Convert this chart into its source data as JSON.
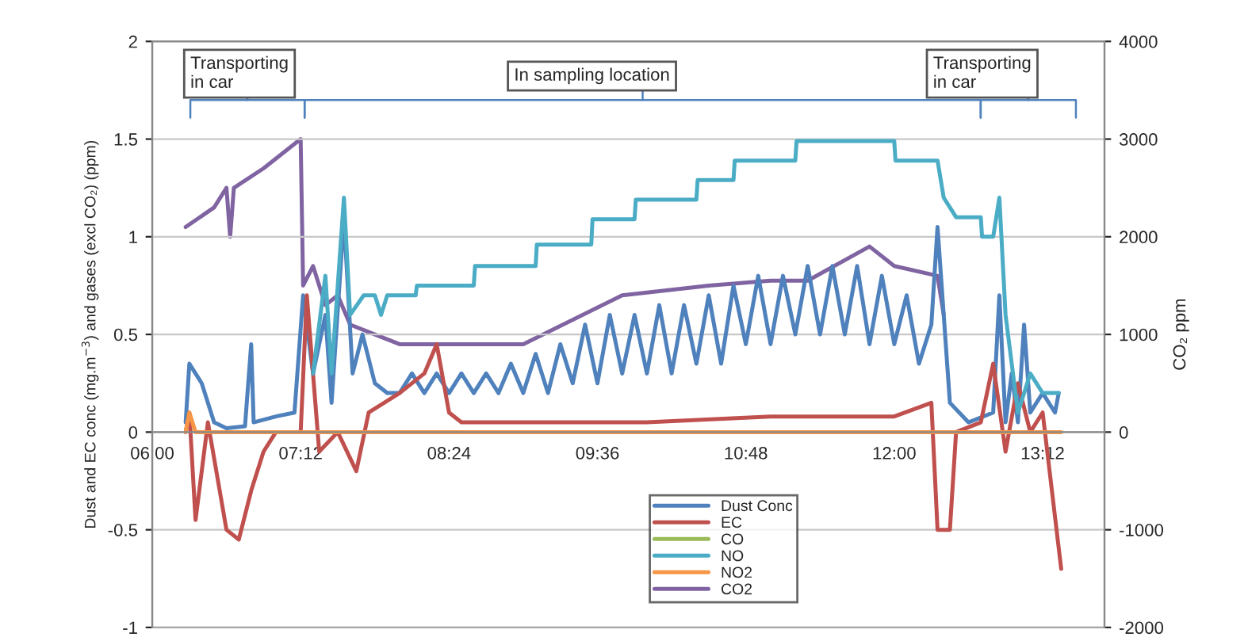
{
  "chart_data": {
    "type": "line",
    "xlabel": null,
    "ylabel": "Dust and EC conc (mg.m$^{−3}$) and gases (excl CO₂) (ppm)",
    "y2label": "CO₂ ppm",
    "annotations": [
      "Transporting in car",
      "In sampling location",
      "Transporting in car"
    ],
    "xlim": [
      6,
      13.7
    ],
    "xticks": [
      {
        "value": 6,
        "label": "06:00"
      },
      {
        "value": 7.2,
        "label": "07:12"
      },
      {
        "value": 8.4,
        "label": "08:24"
      },
      {
        "value": 9.6,
        "label": "09:36"
      },
      {
        "value": 10.8,
        "label": "10:48"
      },
      {
        "value": 12,
        "label": "12:00"
      },
      {
        "value": 13.2,
        "label": "13:12"
      }
    ],
    "ylim": [
      -1,
      2
    ],
    "yticks": [
      -1,
      -0.5,
      0,
      0.5,
      1,
      1.5,
      2
    ],
    "y2lim": [
      -2000,
      4000
    ],
    "y2ticks": [
      -2000,
      -1000,
      0,
      1000,
      2000,
      3000,
      4000
    ],
    "grid": "y",
    "legend": "bottom",
    "marker": "none",
    "line_style": "solid",
    "series": [
      {
        "name": "Dust Conc",
        "color": "#4f81bd",
        "x": [
          6.27,
          6.3,
          6.4,
          6.5,
          6.6,
          6.75,
          6.8,
          6.82,
          7.0,
          7.15,
          7.22,
          7.3,
          7.4,
          7.45,
          7.55,
          7.62,
          7.7,
          7.8,
          7.9,
          8.0,
          8.1,
          8.2,
          8.3,
          8.4,
          8.5,
          8.6,
          8.7,
          8.8,
          8.9,
          9.0,
          9.1,
          9.2,
          9.3,
          9.4,
          9.5,
          9.6,
          9.7,
          9.8,
          9.9,
          10.0,
          10.1,
          10.2,
          10.3,
          10.4,
          10.5,
          10.6,
          10.7,
          10.8,
          10.9,
          11.0,
          11.1,
          11.2,
          11.3,
          11.4,
          11.5,
          11.6,
          11.7,
          11.8,
          11.9,
          12.0,
          12.1,
          12.2,
          12.3,
          12.35,
          12.45,
          12.6,
          12.8,
          12.85,
          12.9,
          12.95,
          13.0,
          13.05,
          13.1,
          13.2,
          13.3,
          13.33
        ],
        "values": [
          0.05,
          0.35,
          0.25,
          0.05,
          0.02,
          0.03,
          0.45,
          0.05,
          0.08,
          0.1,
          0.7,
          0.3,
          0.6,
          0.15,
          1.1,
          0.3,
          0.5,
          0.25,
          0.2,
          0.2,
          0.3,
          0.2,
          0.3,
          0.2,
          0.3,
          0.2,
          0.3,
          0.2,
          0.35,
          0.2,
          0.4,
          0.2,
          0.45,
          0.25,
          0.55,
          0.25,
          0.6,
          0.3,
          0.6,
          0.3,
          0.65,
          0.3,
          0.65,
          0.35,
          0.7,
          0.35,
          0.75,
          0.45,
          0.8,
          0.45,
          0.8,
          0.5,
          0.85,
          0.5,
          0.85,
          0.5,
          0.85,
          0.45,
          0.8,
          0.45,
          0.7,
          0.35,
          0.55,
          1.05,
          0.15,
          0.05,
          0.1,
          0.7,
          0.05,
          0.3,
          0.05,
          0.55,
          0.1,
          0.2,
          0.1,
          0.2
        ]
      },
      {
        "name": "EC",
        "color": "#c0504d",
        "x": [
          6.27,
          6.3,
          6.35,
          6.45,
          6.6,
          6.7,
          6.8,
          6.9,
          7.0,
          7.2,
          7.25,
          7.35,
          7.5,
          7.65,
          7.75,
          8.0,
          8.2,
          8.3,
          8.4,
          8.5,
          9.0,
          10.0,
          11.0,
          12.0,
          12.3,
          12.35,
          12.45,
          12.5,
          12.7,
          12.8,
          12.9,
          13.0,
          13.1,
          13.2,
          13.35
        ],
        "values": [
          0.0,
          0.1,
          -0.45,
          0.05,
          -0.5,
          -0.55,
          -0.3,
          -0.1,
          0.0,
          0.0,
          0.7,
          -0.1,
          0.0,
          -0.2,
          0.1,
          0.2,
          0.3,
          0.45,
          0.1,
          0.05,
          0.05,
          0.05,
          0.08,
          0.08,
          0.15,
          -0.5,
          -0.5,
          0.0,
          0.05,
          0.35,
          -0.1,
          0.25,
          0.0,
          0.1,
          -0.7
        ]
      },
      {
        "name": "CO",
        "color": "#9bbb59",
        "values": [
          null
        ]
      },
      {
        "name": "NO",
        "color": "#4bacc6",
        "x": [
          7.3,
          7.4,
          7.45,
          7.55,
          7.6,
          7.71,
          7.8,
          7.85,
          7.9,
          8.13,
          8.14,
          8.6,
          8.61,
          9.1,
          9.11,
          9.55,
          9.56,
          9.9,
          9.91,
          10.4,
          10.41,
          10.7,
          10.71,
          11.2,
          11.21,
          12.0,
          12.01,
          12.35,
          12.4,
          12.5,
          12.7,
          12.71,
          12.8,
          12.85,
          12.9,
          13.0,
          13.1,
          13.2,
          13.33
        ],
        "values": [
          0.3,
          0.8,
          0.3,
          1.2,
          0.6,
          0.7,
          0.7,
          0.6,
          0.7,
          0.7,
          0.75,
          0.75,
          0.85,
          0.85,
          0.96,
          0.96,
          1.09,
          1.09,
          1.19,
          1.19,
          1.29,
          1.29,
          1.39,
          1.39,
          1.49,
          1.49,
          1.39,
          1.39,
          1.2,
          1.1,
          1.1,
          1.0,
          1.0,
          1.2,
          0.6,
          0.1,
          0.3,
          0.2,
          0.2
        ]
      },
      {
        "name": "NO2",
        "color": "#f79646",
        "x": [
          6.27,
          6.3,
          6.35,
          13.35
        ],
        "values": [
          0.0,
          0.1,
          0.0,
          0.0
        ]
      },
      {
        "name": "CO2",
        "color": "#8064a2",
        "axis": "y2",
        "x": [
          6.27,
          6.5,
          6.6,
          6.63,
          6.66,
          6.9,
          7.2,
          7.22,
          7.3,
          7.4,
          7.5,
          7.6,
          7.8,
          8.0,
          9.0,
          9.8,
          10.5,
          11.0,
          11.3,
          11.8,
          12.0,
          12.35,
          12.4
        ],
        "values": [
          2100,
          2300,
          2500,
          2000,
          2500,
          2700,
          3000,
          1500,
          1700,
          1300,
          1400,
          1100,
          1000,
          900,
          900,
          1400,
          1500,
          1550,
          1550,
          1900,
          1700,
          1600,
          1200
        ]
      }
    ]
  }
}
